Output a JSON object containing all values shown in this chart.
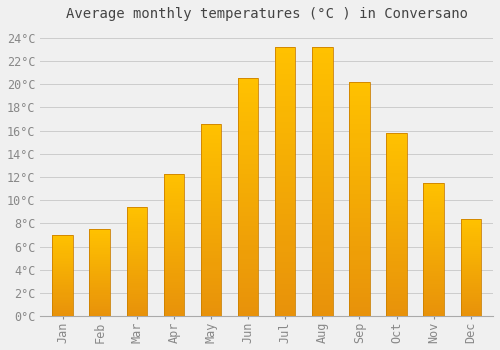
{
  "title": "Average monthly temperatures (°C ) in Conversano",
  "months": [
    "Jan",
    "Feb",
    "Mar",
    "Apr",
    "May",
    "Jun",
    "Jul",
    "Aug",
    "Sep",
    "Oct",
    "Nov",
    "Dec"
  ],
  "temperatures": [
    7.0,
    7.5,
    9.4,
    12.3,
    16.6,
    20.5,
    23.2,
    23.2,
    20.2,
    15.8,
    11.5,
    8.4
  ],
  "bar_color_top": "#FFC200",
  "bar_color_bottom": "#E8920A",
  "bar_edge_color": "#CC8000",
  "background_color": "#F0F0F0",
  "grid_color": "#CCCCCC",
  "ylim": [
    0,
    25
  ],
  "yticks": [
    0,
    2,
    4,
    6,
    8,
    10,
    12,
    14,
    16,
    18,
    20,
    22,
    24
  ],
  "title_fontsize": 10,
  "tick_fontsize": 8.5,
  "title_color": "#444444",
  "tick_color": "#888888",
  "bar_width": 0.55
}
